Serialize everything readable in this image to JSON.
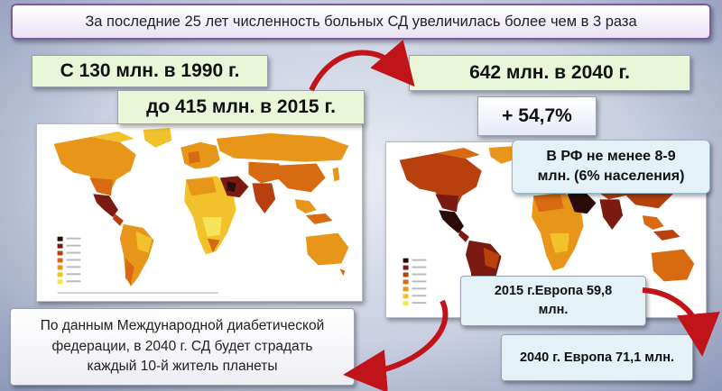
{
  "title": "За последние 25 лет численность больных СД увеличилась более чем в 3 раза",
  "stats": {
    "from_1990": "С 130 млн. в 1990 г.",
    "to_2015": "до 415 млн. в 2015 г.",
    "forecast_2040": "642 млн. в 2040 г.",
    "increase": "+ 54,7%"
  },
  "russia": {
    "line1": "В РФ не менее  8-9",
    "line2": "млн. (6% населения)"
  },
  "europe": {
    "e2015_line1": "2015 г.Европа 59,8",
    "e2015_line2": "млн.",
    "e2040": "2040 г. Европа 71,1 млн."
  },
  "idf_note": {
    "line1": "По данным Международной диабетической",
    "line2": "федерации, в 2040 г. СД будет страдать",
    "line3": "каждый 10-й житель планеты"
  },
  "colors": {
    "background": "#c9cfe0",
    "title_border": "#7a5aa8",
    "stat_bg": "#eaf6d8",
    "info_bg": "#e4f2f8",
    "arrow": "#c0141a",
    "map_legend": [
      "#2b0a0a",
      "#7a1a10",
      "#b8400e",
      "#d86a12",
      "#e8961a",
      "#f2c22c",
      "#f7e35a"
    ]
  }
}
